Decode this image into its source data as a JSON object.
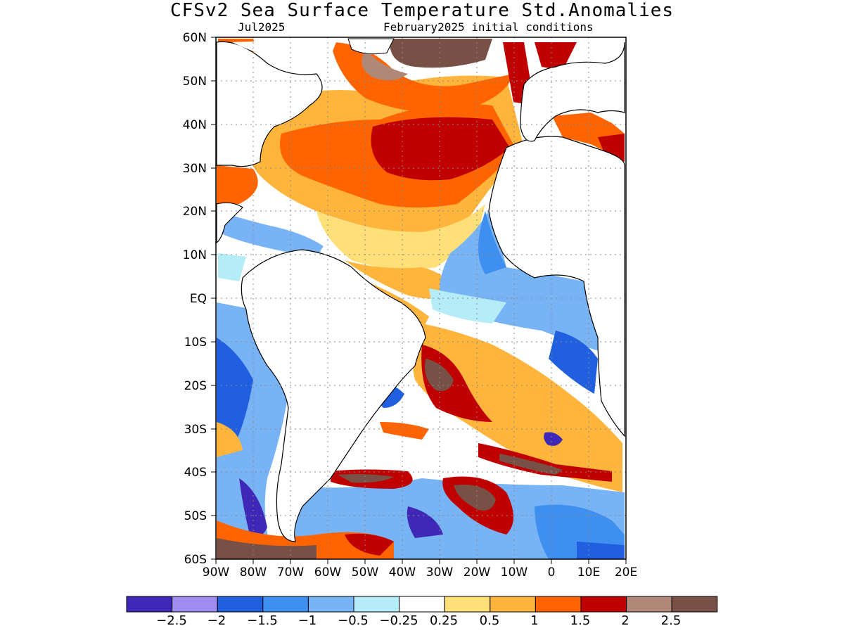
{
  "title": "CFSv2 Sea Surface Temperature Std.Anomalies",
  "subtitle_left": "Jul2025",
  "subtitle_right": "February2025 initial conditions",
  "map": {
    "lon_range": [
      -90,
      20
    ],
    "lat_range": [
      -60,
      60
    ],
    "grid": true,
    "lat_labels": [
      "60N",
      "50N",
      "40N",
      "30N",
      "20N",
      "10N",
      "EQ",
      "10S",
      "20S",
      "30S",
      "40S",
      "50S",
      "60S"
    ],
    "lon_labels": [
      "90W",
      "80W",
      "70W",
      "60W",
      "50W",
      "40W",
      "30W",
      "20W",
      "10W",
      "0",
      "10E",
      "20E"
    ]
  },
  "colorbar": {
    "colors": [
      "#3f28b8",
      "#9f8cf0",
      "#1f5fe0",
      "#3f8ff0",
      "#78b4f5",
      "#b4ecf8",
      "#ffffff",
      "#ffe078",
      "#ffb43c",
      "#ff6400",
      "#c00000",
      "#b08878",
      "#785046"
    ],
    "labels": [
      "−2.5",
      "−2",
      "−1.5",
      "−1",
      "−0.5",
      "−0.25",
      "0.25",
      "0.5",
      "1",
      "1.5",
      "2",
      "2.5"
    ]
  }
}
